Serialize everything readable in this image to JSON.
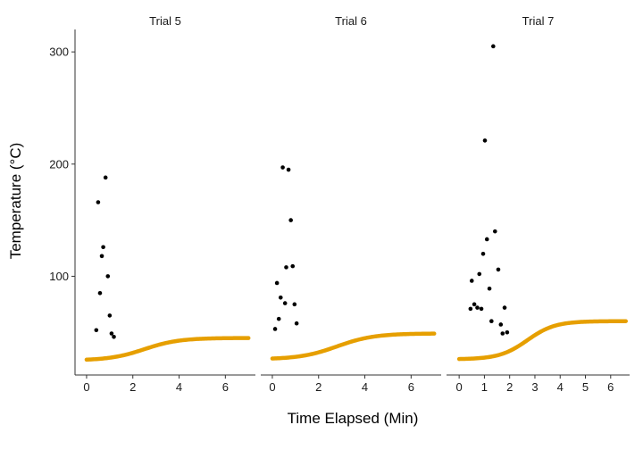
{
  "chart_data": {
    "type": "scatter",
    "xlabel": "Time Elapsed (Min)",
    "ylabel": "Temperature (°C)",
    "ylim": [
      12,
      320
    ],
    "yticks": [
      100,
      200,
      300
    ],
    "colors": {
      "points": "#000000",
      "curve": "#E69F00",
      "axis": "#333333"
    },
    "facets": [
      {
        "title": "Trial 5",
        "xlim": [
          -0.5,
          7.3
        ],
        "xticks": [
          0,
          2,
          4,
          6
        ],
        "points": [
          {
            "x": 0.42,
            "y": 52
          },
          {
            "x": 0.5,
            "y": 166
          },
          {
            "x": 0.58,
            "y": 85
          },
          {
            "x": 0.66,
            "y": 118
          },
          {
            "x": 0.72,
            "y": 126
          },
          {
            "x": 0.82,
            "y": 188
          },
          {
            "x": 0.92,
            "y": 100
          },
          {
            "x": 1.0,
            "y": 65
          },
          {
            "x": 1.08,
            "y": 49
          },
          {
            "x": 1.18,
            "y": 46
          }
        ],
        "curve": {
          "base": 25,
          "plateau": 45,
          "x_mid": 2.5,
          "scale": 0.75,
          "x_range": [
            0,
            7
          ]
        }
      },
      {
        "title": "Trial 6",
        "xlim": [
          -0.5,
          7.3
        ],
        "xticks": [
          0,
          2,
          4,
          6
        ],
        "points": [
          {
            "x": 0.12,
            "y": 53
          },
          {
            "x": 0.2,
            "y": 94
          },
          {
            "x": 0.28,
            "y": 62
          },
          {
            "x": 0.36,
            "y": 81
          },
          {
            "x": 0.45,
            "y": 197
          },
          {
            "x": 0.55,
            "y": 76
          },
          {
            "x": 0.6,
            "y": 108
          },
          {
            "x": 0.7,
            "y": 195
          },
          {
            "x": 0.8,
            "y": 150
          },
          {
            "x": 0.88,
            "y": 109
          },
          {
            "x": 0.96,
            "y": 75
          },
          {
            "x": 1.05,
            "y": 58
          }
        ],
        "curve": {
          "base": 26,
          "plateau": 49,
          "x_mid": 2.8,
          "scale": 0.8,
          "x_range": [
            0,
            7
          ]
        }
      },
      {
        "title": "Trial 7",
        "xlim": [
          -0.5,
          6.75
        ],
        "xticks": [
          0,
          1,
          2,
          3,
          4,
          5,
          6
        ],
        "points": [
          {
            "x": 0.45,
            "y": 71
          },
          {
            "x": 0.5,
            "y": 96
          },
          {
            "x": 0.6,
            "y": 75
          },
          {
            "x": 0.72,
            "y": 72
          },
          {
            "x": 0.8,
            "y": 102
          },
          {
            "x": 0.88,
            "y": 71
          },
          {
            "x": 0.95,
            "y": 120
          },
          {
            "x": 1.02,
            "y": 221
          },
          {
            "x": 1.1,
            "y": 133
          },
          {
            "x": 1.2,
            "y": 89
          },
          {
            "x": 1.28,
            "y": 60
          },
          {
            "x": 1.35,
            "y": 305
          },
          {
            "x": 1.42,
            "y": 140
          },
          {
            "x": 1.55,
            "y": 106
          },
          {
            "x": 1.65,
            "y": 57
          },
          {
            "x": 1.72,
            "y": 49
          },
          {
            "x": 1.8,
            "y": 72
          },
          {
            "x": 1.9,
            "y": 50
          }
        ],
        "curve": {
          "base": 26,
          "plateau": 60,
          "x_mid": 2.7,
          "scale": 0.55,
          "x_range": [
            0,
            6.6
          ]
        }
      }
    ]
  }
}
